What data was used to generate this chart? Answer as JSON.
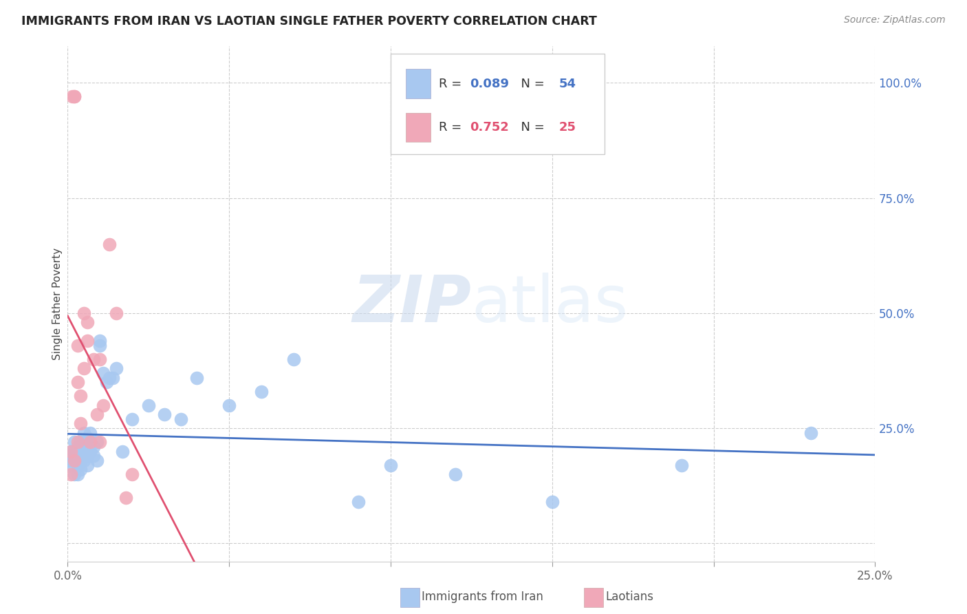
{
  "title": "IMMIGRANTS FROM IRAN VS LAOTIAN SINGLE FATHER POVERTY CORRELATION CHART",
  "source": "Source: ZipAtlas.com",
  "ylabel": "Single Father Poverty",
  "xlim": [
    0.0,
    0.25
  ],
  "ylim": [
    0.0,
    1.0
  ],
  "y_ticks": [
    0.0,
    0.25,
    0.5,
    0.75,
    1.0
  ],
  "y_tick_labels": [
    "",
    "25.0%",
    "50.0%",
    "75.0%",
    "100.0%"
  ],
  "x_ticks": [
    0.0,
    0.05,
    0.1,
    0.15,
    0.2,
    0.25
  ],
  "x_tick_labels": [
    "0.0%",
    "",
    "",
    "",
    "",
    "25.0%"
  ],
  "iran_R": 0.089,
  "iran_N": 54,
  "laotian_R": 0.752,
  "laotian_N": 25,
  "iran_color": "#a8c8f0",
  "laotian_color": "#f0a8b8",
  "iran_line_color": "#4472c4",
  "laotian_line_color": "#e8506080",
  "watermark_color": "#d0e4f8",
  "iran_x": [
    0.0005,
    0.001,
    0.001,
    0.0015,
    0.002,
    0.002,
    0.002,
    0.0025,
    0.003,
    0.003,
    0.003,
    0.003,
    0.003,
    0.004,
    0.004,
    0.004,
    0.004,
    0.005,
    0.005,
    0.005,
    0.005,
    0.006,
    0.006,
    0.006,
    0.006,
    0.007,
    0.007,
    0.007,
    0.008,
    0.008,
    0.009,
    0.009,
    0.01,
    0.01,
    0.011,
    0.012,
    0.013,
    0.014,
    0.015,
    0.017,
    0.02,
    0.025,
    0.03,
    0.035,
    0.04,
    0.05,
    0.06,
    0.07,
    0.09,
    0.1,
    0.12,
    0.15,
    0.19,
    0.23
  ],
  "iran_y": [
    0.18,
    0.2,
    0.17,
    0.19,
    0.2,
    0.22,
    0.15,
    0.18,
    0.2,
    0.17,
    0.19,
    0.21,
    0.15,
    0.2,
    0.18,
    0.22,
    0.16,
    0.2,
    0.18,
    0.22,
    0.24,
    0.19,
    0.21,
    0.17,
    0.23,
    0.2,
    0.22,
    0.24,
    0.19,
    0.21,
    0.18,
    0.22,
    0.44,
    0.43,
    0.37,
    0.35,
    0.36,
    0.36,
    0.38,
    0.2,
    0.27,
    0.3,
    0.28,
    0.27,
    0.36,
    0.3,
    0.33,
    0.4,
    0.09,
    0.17,
    0.15,
    0.09,
    0.17,
    0.24
  ],
  "laotian_x": [
    0.001,
    0.001,
    0.0015,
    0.002,
    0.002,
    0.002,
    0.003,
    0.003,
    0.003,
    0.004,
    0.004,
    0.005,
    0.005,
    0.006,
    0.006,
    0.007,
    0.008,
    0.009,
    0.01,
    0.01,
    0.011,
    0.013,
    0.015,
    0.018,
    0.02
  ],
  "laotian_y": [
    0.2,
    0.15,
    0.97,
    0.97,
    0.97,
    0.18,
    0.35,
    0.22,
    0.43,
    0.32,
    0.26,
    0.5,
    0.38,
    0.44,
    0.48,
    0.22,
    0.4,
    0.28,
    0.22,
    0.4,
    0.3,
    0.65,
    0.5,
    0.1,
    0.15
  ]
}
